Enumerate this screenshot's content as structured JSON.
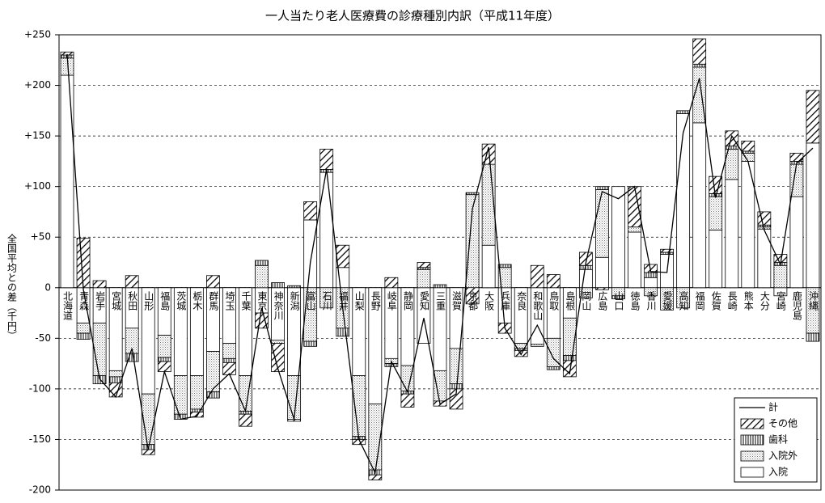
{
  "chart_data": {
    "type": "bar",
    "title": "一人当たり老人医療費の診療種別内訳（平成11年度）",
    "y_label": "全国平均との差（千円）",
    "categories": [
      "北海道",
      "青森",
      "岩手",
      "宮城",
      "秋田",
      "山形",
      "福島",
      "茨城",
      "栃木",
      "群馬",
      "埼玉",
      "千葉",
      "東京",
      "神奈川",
      "新潟",
      "富山",
      "石川",
      "福井",
      "山梨",
      "長野",
      "岐阜",
      "静岡",
      "愛知",
      "三重",
      "滋賀",
      "京都",
      "大阪",
      "兵庫",
      "奈良",
      "和歌山",
      "鳥取",
      "島根",
      "岡山",
      "広島",
      "山口",
      "徳島",
      "香川",
      "愛媛",
      "高知",
      "福岡",
      "佐賀",
      "長崎",
      "熊本",
      "大分",
      "宮崎",
      "鹿児島",
      "沖縄"
    ],
    "series": [
      {
        "name": "入院",
        "values": [
          210,
          -35,
          -35,
          -82,
          -40,
          -105,
          -47,
          -87,
          -87,
          -63,
          -55,
          -87,
          -25,
          -52,
          -87,
          67,
          114,
          20,
          -87,
          -115,
          -70,
          -77,
          -55,
          -82,
          -60,
          0,
          42,
          -35,
          -55,
          -56,
          -50,
          -30,
          18,
          30,
          100,
          55,
          10,
          33,
          172,
          163,
          57,
          107,
          125,
          58,
          -8,
          90,
          143
        ]
      },
      {
        "name": "入院外",
        "values": [
          17,
          -10,
          -52,
          -6,
          -25,
          -50,
          -22,
          -38,
          -33,
          -40,
          -15,
          -35,
          22,
          -3,
          -43,
          -53,
          -20,
          -40,
          -60,
          -65,
          -5,
          -25,
          18,
          -30,
          -35,
          92,
          80,
          20,
          -5,
          -2,
          -28,
          -37,
          -10,
          67,
          -8,
          5,
          -8,
          -22,
          -20,
          55,
          33,
          30,
          8,
          2,
          22,
          32,
          -45
        ]
      },
      {
        "name": "歯科",
        "values": [
          3,
          -6,
          -8,
          -6,
          -8,
          -5,
          -4,
          -5,
          -3,
          -6,
          -4,
          -3,
          5,
          5,
          2,
          -5,
          3,
          -8,
          -3,
          -5,
          -3,
          -3,
          2,
          3,
          -5,
          2,
          0,
          3,
          -2,
          0,
          -3,
          -5,
          4,
          3,
          -3,
          0,
          5,
          2,
          3,
          3,
          3,
          3,
          2,
          2,
          3,
          3,
          -8
        ]
      },
      {
        "name": "その他",
        "values": [
          3,
          49,
          7,
          -14,
          12,
          -5,
          -10,
          0,
          -5,
          12,
          -12,
          -12,
          -15,
          -28,
          -2,
          18,
          20,
          22,
          -5,
          -5,
          10,
          -13,
          5,
          -5,
          -20,
          -16,
          20,
          -10,
          -6,
          22,
          13,
          -16,
          13,
          -2,
          0,
          40,
          8,
          3,
          0,
          25,
          17,
          15,
          10,
          13,
          8,
          8,
          52
        ]
      },
      {
        "name": "計",
        "type": "line",
        "values": [
          231,
          -2,
          -90,
          -108,
          -60,
          -160,
          -83,
          -130,
          -127,
          -100,
          -85,
          -122,
          -20,
          -80,
          -130,
          25,
          117,
          -20,
          -150,
          -183,
          -73,
          -103,
          -30,
          -115,
          -105,
          78,
          139,
          -40,
          -66,
          -37,
          -70,
          -85,
          25,
          95,
          88,
          100,
          16,
          15,
          153,
          207,
          89,
          150,
          125,
          57,
          23,
          123,
          138
        ]
      }
    ],
    "ylim": [
      -200,
      250
    ],
    "yticks": [
      {
        "value": 250,
        "label": "+250"
      },
      {
        "value": 200,
        "label": "+200"
      },
      {
        "value": 150,
        "label": "+150"
      },
      {
        "value": 100,
        "label": "+100"
      },
      {
        "value": 50,
        "label": "+50"
      },
      0,
      -50,
      -100,
      -150,
      -200
    ],
    "grid": true,
    "legend": "lower right"
  }
}
